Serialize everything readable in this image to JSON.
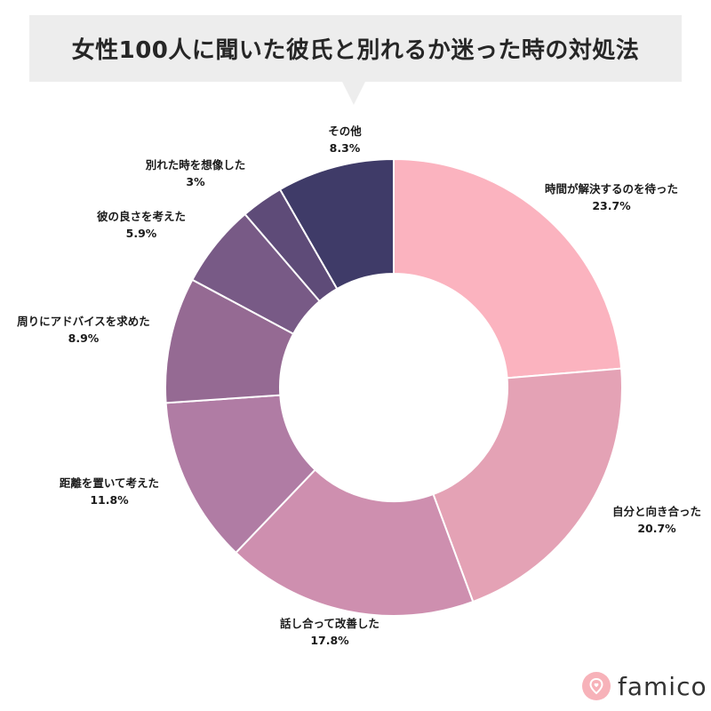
{
  "chart_data": {
    "type": "pie",
    "title": "女性100人に聞いた彼氏と別れるか迷った時の対処法",
    "donut": true,
    "slices": [
      {
        "label": "時間が解決するのを待った",
        "value": 23.7,
        "display": "23.7%",
        "color": "#fbb3bf"
      },
      {
        "label": "自分と向き合った",
        "value": 20.7,
        "display": "20.7%",
        "color": "#e4a2b5"
      },
      {
        "label": "話し合って改善した",
        "value": 17.8,
        "display": "17.8%",
        "color": "#ce8faf"
      },
      {
        "label": "距離を置いて考えた",
        "value": 11.8,
        "display": "11.8%",
        "color": "#b07ca4"
      },
      {
        "label": "周りにアドバイスを求めた",
        "value": 8.9,
        "display": "8.9%",
        "color": "#956a93"
      },
      {
        "label": "彼の良さを考えた",
        "value": 5.9,
        "display": "5.9%",
        "color": "#785a86"
      },
      {
        "label": "別れた時を想像した",
        "value": 3.0,
        "display": "3%",
        "color": "#5e4b78"
      },
      {
        "label": "その他",
        "value": 8.3,
        "display": "8.3%",
        "color": "#3f3b68"
      }
    ]
  },
  "logo": {
    "text": "famico",
    "icon": "heart-pin-icon",
    "color": "#f7b2b9"
  }
}
